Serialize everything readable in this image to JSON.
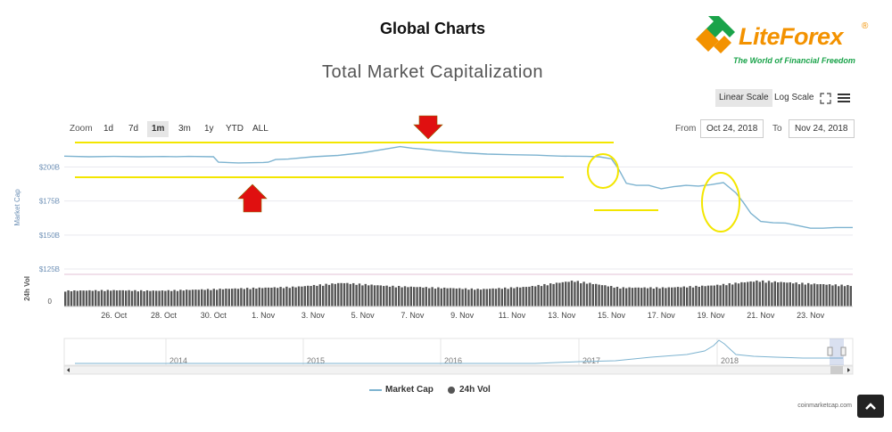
{
  "header": {
    "title": "Global Charts"
  },
  "brand": {
    "name": "LiteForex",
    "registered": "®",
    "tagline": "The World of Financial Freedom",
    "colors": {
      "orange": "#f39200",
      "green": "#1aa34a",
      "blue": "#1e88c8"
    }
  },
  "chart_controls": {
    "scale_options": [
      "Linear Scale",
      "Log Scale"
    ],
    "selected_scale": "Linear Scale",
    "zoom_label": "Zoom",
    "zoom_options": [
      "1d",
      "7d",
      "1m",
      "3m",
      "1y",
      "YTD",
      "ALL"
    ],
    "selected_zoom": "1m",
    "from_label": "From",
    "from_value": "Oct 24, 2018",
    "to_label": "To",
    "to_value": "Nov 24, 2018",
    "icons": [
      "fullscreen-icon",
      "menu-icon"
    ]
  },
  "legend": {
    "market_cap": "Market Cap",
    "volume": "24h Vol"
  },
  "credit": "coinmarketcap.com",
  "colors": {
    "line": "#7db3d0",
    "volume": "#555555",
    "highlight": "#f3e600",
    "arrow": "#e01010",
    "grid": "#e9e9ef"
  },
  "chart_data": {
    "type": "line",
    "title": "Total Market Capitalization",
    "ylabel": "Market Cap",
    "ytick_labels": [
      "$200B",
      "$175B",
      "$150B",
      "$125B"
    ],
    "ytick_values": [
      200,
      175,
      150,
      125
    ],
    "ylim": [
      125,
      218
    ],
    "xtick_labels": [
      "26. Oct",
      "28. Oct",
      "30. Oct",
      "1. Nov",
      "3. Nov",
      "5. Nov",
      "7. Nov",
      "9. Nov",
      "11. Nov",
      "13. Nov",
      "15. Nov",
      "17. Nov",
      "19. Nov",
      "21. Nov",
      "23. Nov"
    ],
    "xtick_days": [
      2,
      4,
      6,
      8,
      10,
      12,
      14,
      16,
      18,
      20,
      22,
      24,
      26,
      28,
      30
    ],
    "x_range_days": [
      0,
      31.7
    ],
    "series": [
      {
        "name": "Market Cap",
        "x_days": [
          0,
          1,
          2,
          3,
          4,
          4.5,
          5,
          6,
          6.2,
          7,
          8,
          8.2,
          8.5,
          9,
          10,
          11,
          12,
          13,
          13.5,
          14,
          14.5,
          15,
          15.5,
          16,
          17,
          18,
          19,
          19.5,
          20,
          21,
          21.5,
          22,
          22.3,
          22.6,
          23,
          23.5,
          24,
          24.5,
          25,
          25.5,
          26,
          26.5,
          27,
          27.3,
          27.6,
          28,
          28.5,
          29,
          30,
          30.5,
          31,
          31.7
        ],
        "values": [
          208,
          207.5,
          207.8,
          207.5,
          207.7,
          207.6,
          207.8,
          207.5,
          203.5,
          203,
          203.3,
          203.5,
          205.5,
          205.8,
          207.5,
          208.5,
          210.5,
          213.5,
          215,
          213.8,
          213,
          212,
          211.3,
          210.5,
          209.5,
          209,
          208.7,
          208.3,
          208,
          207.8,
          207.5,
          206,
          198,
          188,
          186.5,
          186.5,
          184,
          185.5,
          186.5,
          186,
          187,
          188.5,
          181,
          174,
          166,
          160,
          159,
          158.8,
          155,
          155,
          155.5,
          155.5
        ]
      },
      {
        "name": "24h Vol",
        "pattern": "bars",
        "relative_levels": [
          0.6,
          0.62,
          0.6,
          0.65,
          0.7,
          0.75,
          0.9,
          0.78,
          0.72,
          0.66,
          0.75,
          0.98,
          0.72,
          0.72,
          0.8,
          0.98,
          0.88,
          0.8
        ]
      }
    ],
    "volume_tick": "0",
    "volume_label": "24h Vol",
    "navigator": {
      "years": [
        "2014",
        "2015",
        "2016",
        "2017",
        "2018"
      ]
    },
    "annotations": [
      "red-arrow-down",
      "red-arrow-up",
      "yellow-lines",
      "yellow-circles"
    ]
  }
}
